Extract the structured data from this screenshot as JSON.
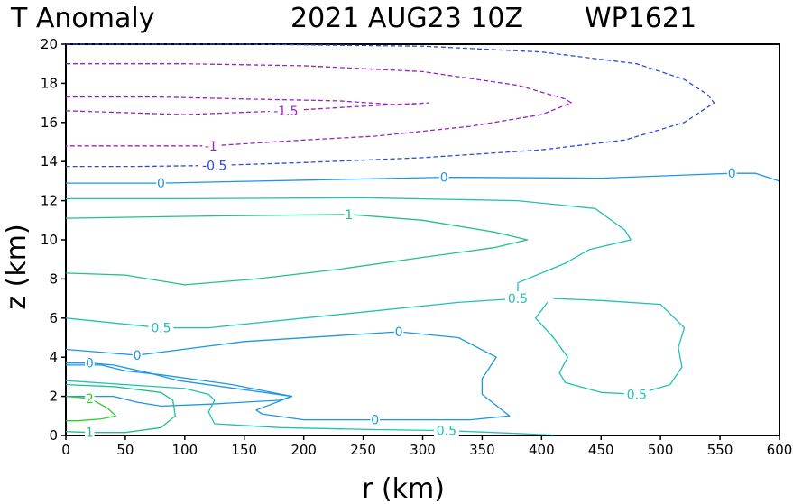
{
  "chart_data": {
    "type": "contour",
    "title": {
      "variable": "T Anomaly",
      "datetime": "2021 AUG23 10Z",
      "storm_id": "WP1621"
    },
    "xlabel": "r (km)",
    "ylabel": "z (km)",
    "xlim": [
      0,
      600
    ],
    "ylim": [
      0,
      20
    ],
    "x_ticks": [
      0,
      50,
      100,
      150,
      200,
      250,
      300,
      350,
      400,
      450,
      500,
      550,
      600
    ],
    "y_ticks": [
      0,
      2,
      4,
      6,
      8,
      10,
      12,
      14,
      16,
      18,
      20
    ],
    "contours": [
      {
        "level": -1.5,
        "label": "-1.5",
        "color": "#9a20c8",
        "dashed": true,
        "labels": [
          {
            "text": "-1.5",
            "x": 185,
            "z": 16.6
          }
        ],
        "points": [
          [
            0,
            16.6
          ],
          [
            100,
            16.4
          ],
          [
            185,
            16.6
          ],
          [
            270,
            16.9
          ],
          [
            305,
            17.0
          ],
          [
            280,
            16.9
          ],
          [
            230,
            17.1
          ],
          [
            150,
            17.2
          ],
          [
            80,
            17.3
          ],
          [
            0,
            17.3
          ]
        ]
      },
      {
        "level": -1.0,
        "label": "-1",
        "color": "#9a20c8",
        "dashed": true,
        "labels": [
          {
            "text": "-1",
            "x": 122,
            "z": 14.8
          }
        ],
        "points": [
          [
            0,
            19.0
          ],
          [
            100,
            19.0
          ],
          [
            200,
            18.9
          ],
          [
            300,
            18.6
          ],
          [
            380,
            17.9
          ],
          [
            420,
            17.2
          ],
          [
            425,
            17.0
          ],
          [
            400,
            16.4
          ],
          [
            340,
            15.8
          ],
          [
            260,
            15.3
          ],
          [
            200,
            15.1
          ],
          [
            122,
            14.8
          ],
          [
            60,
            14.8
          ],
          [
            0,
            14.8
          ]
        ]
      },
      {
        "level": -0.5,
        "label": "-0.5",
        "color": "#2a4ae0",
        "dashed": true,
        "labels": [
          {
            "text": "-0.5",
            "x": 125,
            "z": 13.8
          }
        ],
        "points": [
          [
            0,
            20.0
          ],
          [
            150,
            20.0
          ],
          [
            300,
            19.9
          ],
          [
            400,
            19.6
          ],
          [
            480,
            19.0
          ],
          [
            520,
            18.2
          ],
          [
            540,
            17.4
          ],
          [
            545,
            17.0
          ],
          [
            520,
            16.0
          ],
          [
            470,
            15.1
          ],
          [
            400,
            14.6
          ],
          [
            300,
            14.2
          ],
          [
            200,
            13.95
          ],
          [
            125,
            13.8
          ],
          [
            60,
            13.75
          ],
          [
            0,
            13.75
          ]
        ]
      },
      {
        "level": 0,
        "label": "0",
        "color": "#1e96e6",
        "dashed": false,
        "labels": [
          {
            "text": "0",
            "x": 80,
            "z": 12.9
          },
          {
            "text": "0",
            "x": 318,
            "z": 13.2
          },
          {
            "text": "0",
            "x": 560,
            "z": 13.4
          }
        ],
        "points": [
          [
            0,
            12.9
          ],
          [
            80,
            12.9
          ],
          [
            200,
            13.05
          ],
          [
            318,
            13.2
          ],
          [
            450,
            13.15
          ],
          [
            560,
            13.4
          ],
          [
            580,
            13.4
          ],
          [
            600,
            13.0
          ]
        ]
      },
      {
        "level": 1.0,
        "label": "1",
        "color": "#22c08c",
        "dashed": false,
        "labels": [
          {
            "text": "1",
            "x": 238,
            "z": 11.3
          }
        ],
        "points": [
          [
            0,
            11.1
          ],
          [
            100,
            11.2
          ],
          [
            238,
            11.3
          ],
          [
            300,
            11.0
          ],
          [
            360,
            10.4
          ],
          [
            388,
            10.0
          ],
          [
            360,
            9.6
          ],
          [
            300,
            9.1
          ],
          [
            230,
            8.5
          ],
          [
            160,
            8.0
          ],
          [
            100,
            7.7
          ],
          [
            80,
            7.9
          ],
          [
            50,
            8.2
          ],
          [
            0,
            8.3
          ]
        ]
      },
      {
        "level": 0.5,
        "label": "0.5",
        "color": "#22c0b4",
        "dashed": false,
        "labels": [
          {
            "text": "0.5",
            "x": 380,
            "z": 7.0
          },
          {
            "text": "0.5",
            "x": 80,
            "z": 5.5
          }
        ],
        "points": [
          [
            0,
            12.1
          ],
          [
            100,
            12.1
          ],
          [
            250,
            12.15
          ],
          [
            380,
            12.0
          ],
          [
            445,
            11.6
          ],
          [
            470,
            10.5
          ],
          [
            475,
            10.0
          ],
          [
            440,
            9.5
          ],
          [
            420,
            8.8
          ],
          [
            380,
            7.8
          ],
          [
            380,
            7.0
          ],
          [
            330,
            6.8
          ],
          [
            200,
            6.0
          ],
          [
            120,
            5.5
          ],
          [
            80,
            5.5
          ],
          [
            0,
            6.0
          ]
        ]
      },
      {
        "level": 0.5,
        "label": "0.5",
        "color": "#22c0b4",
        "dashed": false,
        "labels": [
          {
            "text": "0.5",
            "x": 480,
            "z": 2.1
          }
        ],
        "points": [
          [
            410,
            7.0
          ],
          [
            450,
            6.9
          ],
          [
            500,
            6.7
          ],
          [
            520,
            5.5
          ],
          [
            515,
            4.5
          ],
          [
            518,
            3.5
          ],
          [
            508,
            2.6
          ],
          [
            480,
            2.1
          ],
          [
            450,
            2.2
          ],
          [
            420,
            2.7
          ],
          [
            415,
            3.2
          ],
          [
            422,
            4.0
          ],
          [
            410,
            5.0
          ],
          [
            395,
            6.0
          ],
          [
            405,
            6.8
          ]
        ]
      },
      {
        "level": 0,
        "label": "0",
        "color": "#1e96e6",
        "dashed": false,
        "labels": [
          {
            "text": "0",
            "x": 60,
            "z": 4.1
          },
          {
            "text": "0",
            "x": 280,
            "z": 5.3
          },
          {
            "text": "0",
            "x": 260,
            "z": 0.8
          }
        ],
        "points": [
          [
            0,
            4.4
          ],
          [
            60,
            4.1
          ],
          [
            150,
            4.8
          ],
          [
            280,
            5.3
          ],
          [
            330,
            5.0
          ],
          [
            362,
            4.0
          ],
          [
            350,
            2.9
          ],
          [
            350,
            2.1
          ],
          [
            373,
            1.0
          ],
          [
            340,
            0.8
          ],
          [
            260,
            0.8
          ],
          [
            200,
            0.8
          ],
          [
            165,
            1.1
          ],
          [
            160,
            1.3
          ],
          [
            190,
            2.0
          ],
          [
            140,
            2.6
          ],
          [
            80,
            3.1
          ],
          [
            50,
            3.3
          ],
          [
            30,
            3.6
          ],
          [
            0,
            3.6
          ]
        ]
      },
      {
        "level": 0,
        "label": "0",
        "color": "#1e96e6",
        "dashed": false,
        "labels": [
          {
            "text": "0",
            "x": 20,
            "z": 3.7
          }
        ],
        "points": [
          [
            0,
            3.7
          ],
          [
            20,
            3.7
          ],
          [
            40,
            3.6
          ],
          [
            70,
            3.2
          ],
          [
            95,
            2.8
          ],
          [
            190,
            2.0
          ],
          [
            180,
            1.8
          ],
          [
            120,
            1.6
          ],
          [
            80,
            1.5
          ],
          [
            60,
            1.7
          ],
          [
            40,
            2.0
          ],
          [
            0,
            2.0
          ]
        ]
      },
      {
        "level": 0.5,
        "label": "0.5",
        "color": "#22c0b4",
        "dashed": false,
        "labels": [
          {
            "text": "0.5",
            "x": 320,
            "z": 0.25
          }
        ],
        "points": [
          [
            0,
            2.8
          ],
          [
            50,
            2.6
          ],
          [
            100,
            2.4
          ],
          [
            120,
            2.1
          ],
          [
            125,
            1.8
          ],
          [
            120,
            1.2
          ],
          [
            125,
            0.6
          ],
          [
            180,
            0.4
          ],
          [
            260,
            0.3
          ],
          [
            320,
            0.25
          ],
          [
            380,
            0.1
          ],
          [
            410,
            0.02
          ]
        ]
      },
      {
        "level": 1.0,
        "label": "1",
        "color": "#22c08c",
        "dashed": false,
        "labels": [
          {
            "text": "1",
            "x": 20,
            "z": 0.15
          }
        ],
        "points": [
          [
            0,
            2.6
          ],
          [
            40,
            2.5
          ],
          [
            80,
            2.2
          ],
          [
            90,
            1.8
          ],
          [
            92,
            1.0
          ],
          [
            80,
            0.4
          ],
          [
            50,
            0.15
          ],
          [
            20,
            0.15
          ],
          [
            0,
            0.2
          ]
        ]
      },
      {
        "level": 2.0,
        "label": "2",
        "color": "#33cc33",
        "dashed": false,
        "labels": [
          {
            "text": "2",
            "x": 20,
            "z": 1.9
          }
        ],
        "points": [
          [
            0,
            2.0
          ],
          [
            20,
            1.9
          ],
          [
            35,
            1.4
          ],
          [
            42,
            1.0
          ],
          [
            30,
            0.85
          ],
          [
            10,
            0.75
          ],
          [
            0,
            0.75
          ]
        ]
      }
    ]
  }
}
